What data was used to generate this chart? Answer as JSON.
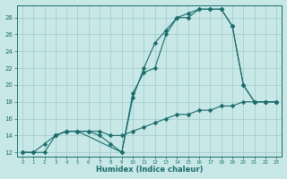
{
  "line1_x": [
    0,
    1,
    2,
    3,
    4,
    5,
    6,
    7,
    8,
    9,
    10,
    11,
    12,
    13,
    14,
    15,
    16,
    17,
    18,
    19,
    20,
    21,
    22,
    23
  ],
  "line1_y": [
    12.0,
    12.0,
    12.0,
    14.0,
    14.5,
    14.5,
    14.5,
    14.5,
    14.0,
    14.0,
    14.5,
    15.0,
    15.5,
    16.0,
    16.5,
    16.5,
    17.0,
    17.0,
    17.5,
    17.5,
    18.0,
    18.0,
    18.0,
    18.0
  ],
  "line2_x": [
    0,
    1,
    2,
    3,
    4,
    5,
    6,
    7,
    8,
    9,
    10,
    11,
    12,
    13,
    14,
    15,
    16,
    17,
    18,
    19,
    20,
    21,
    22,
    23
  ],
  "line2_y": [
    12.0,
    12.0,
    13.0,
    14.0,
    14.5,
    14.5,
    14.5,
    14.0,
    13.0,
    12.0,
    19.0,
    21.5,
    22.0,
    26.0,
    28.0,
    28.0,
    29.0,
    29.0,
    29.0,
    27.0,
    20.0,
    18.0,
    18.0,
    18.0
  ],
  "line3_x": [
    3,
    4,
    5,
    9,
    10,
    11,
    12,
    13,
    14,
    15,
    16,
    17,
    18,
    19,
    20,
    21,
    22,
    23
  ],
  "line3_y": [
    14.0,
    14.5,
    14.5,
    12.0,
    18.5,
    22.0,
    25.0,
    26.5,
    28.0,
    28.5,
    29.0,
    29.0,
    29.0,
    27.0,
    20.0,
    18.0,
    18.0,
    18.0
  ],
  "bg_color": "#c8e8e8",
  "line_color": "#1a6b6b",
  "grid_color": "#a0c8c8",
  "xlabel": "Humidex (Indice chaleur)",
  "xlim": [
    -0.5,
    23.5
  ],
  "ylim": [
    11.5,
    29.5
  ],
  "yticks": [
    12,
    14,
    16,
    18,
    20,
    22,
    24,
    26,
    28
  ],
  "xticks": [
    0,
    1,
    2,
    3,
    4,
    5,
    6,
    7,
    8,
    9,
    10,
    11,
    12,
    13,
    14,
    15,
    16,
    17,
    18,
    19,
    20,
    21,
    22,
    23
  ]
}
